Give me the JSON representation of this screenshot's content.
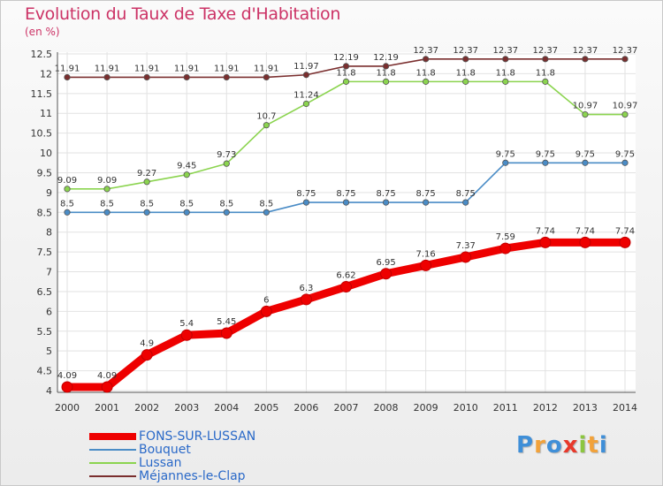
{
  "title": "Evolution du Taux de Taxe d'Habitation",
  "unit_label": "(en %)",
  "logo": {
    "text": "Proxiti",
    "letters": [
      "P",
      "r",
      "o",
      "x",
      "i",
      "t",
      "i"
    ],
    "colors": [
      "#3f8fd8",
      "#f2a23a",
      "#3f8fd8",
      "#e8392b",
      "#8cc63f",
      "#f2a23a",
      "#3f8fd8"
    ]
  },
  "chart_data": {
    "type": "line",
    "title": "Evolution du Taux de Taxe d'Habitation",
    "xlabel": "",
    "ylabel": "(en %)",
    "ylim": [
      4,
      12.5
    ],
    "y_ticks": [
      "4",
      "4.5",
      "5",
      "5.5",
      "6",
      "6.5",
      "7",
      "7.5",
      "8",
      "8.5",
      "9",
      "9.5",
      "10",
      "10.5",
      "11",
      "11.5",
      "12",
      "12.5"
    ],
    "x": [
      "2000",
      "2001",
      "2002",
      "2003",
      "2004",
      "2005",
      "2006",
      "2007",
      "2008",
      "2009",
      "2010",
      "2011",
      "2012",
      "2013",
      "2014"
    ],
    "grid": true,
    "series": [
      {
        "name": "FONS-SUR-LUSSAN",
        "color": "#ee0000",
        "emphasis": "thick",
        "values": [
          4.09,
          4.09,
          4.9,
          5.4,
          5.45,
          6,
          6.3,
          6.62,
          6.95,
          7.16,
          7.37,
          7.59,
          7.74,
          7.74,
          7.74
        ],
        "labels": [
          "4.09",
          "4.09",
          "4.9",
          "5.4",
          "5.45",
          "6",
          "6.3",
          "6.62",
          "6.95",
          "7.16",
          "7.37",
          "7.59",
          "7.74",
          "7.74",
          "7.74"
        ]
      },
      {
        "name": "Bouquet",
        "color": "#4a8cc6",
        "emphasis": "normal",
        "values": [
          8.5,
          8.5,
          8.5,
          8.5,
          8.5,
          8.5,
          8.75,
          8.75,
          8.75,
          8.75,
          8.75,
          9.75,
          9.75,
          9.75,
          9.75
        ],
        "labels": [
          "8.5",
          "8.5",
          "8.5",
          "8.5",
          "8.5",
          "8.5",
          "8.75",
          "8.75",
          "8.75",
          "8.75",
          "8.75",
          "9.75",
          "9.75",
          "9.75",
          "9.75"
        ]
      },
      {
        "name": "Lussan",
        "color": "#8bd44f",
        "emphasis": "normal",
        "values": [
          9.09,
          9.09,
          9.27,
          9.45,
          9.73,
          10.7,
          11.24,
          11.8,
          11.8,
          11.8,
          11.8,
          11.8,
          11.8,
          10.97,
          10.97
        ],
        "labels": [
          "9.09",
          "9.09",
          "9.27",
          "9.45",
          "9.73",
          "10.7",
          "11.24",
          "11.8",
          "11.8",
          "11.8",
          "11.8",
          "11.8",
          "11.8",
          "10.97",
          "10.97"
        ]
      },
      {
        "name": "Méjannes-le-Clap",
        "color": "#7a2e2e",
        "emphasis": "normal",
        "values": [
          11.91,
          11.91,
          11.91,
          11.91,
          11.91,
          11.91,
          11.97,
          12.19,
          12.19,
          12.37,
          12.37,
          12.37,
          12.37,
          12.37,
          12.37
        ],
        "labels": [
          "11.91",
          "11.91",
          "11.91",
          "11.91",
          "11.91",
          "11.91",
          "11.97",
          "12.19",
          "12.19",
          "12.37",
          "12.37",
          "12.37",
          "12.37",
          "12.37",
          "12.37"
        ]
      }
    ]
  }
}
